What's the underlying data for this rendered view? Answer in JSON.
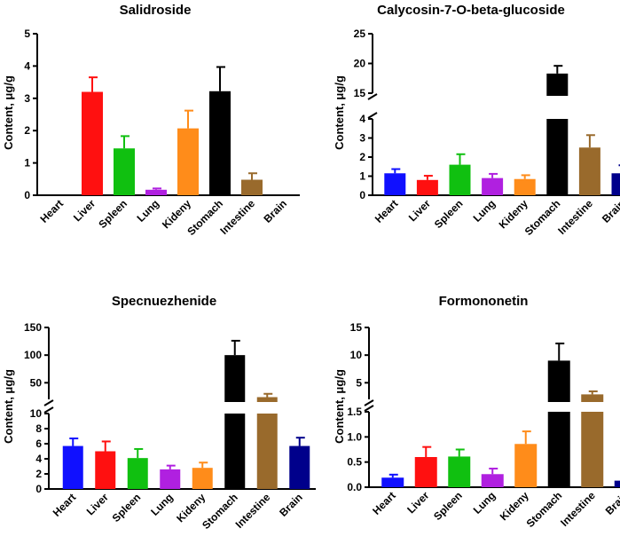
{
  "chart_data": [
    {
      "type": "bar",
      "title": "Salidroside",
      "ylabel": "Content, μg/g",
      "categories": [
        "Heart",
        "Liver",
        "Spleen",
        "Lung",
        "Kideny",
        "Stomach",
        "Intestine",
        "Brain"
      ],
      "values": [
        0,
        3.2,
        1.45,
        0.17,
        2.07,
        3.22,
        0.48,
        0
      ],
      "errors": [
        0,
        0.45,
        0.38,
        0.04,
        0.55,
        0.75,
        0.2,
        0
      ],
      "colors": [
        "#1010ff",
        "#ff1010",
        "#10c010",
        "#b020e0",
        "#ff8c1a",
        "#000000",
        "#996a2c",
        "#00008b"
      ],
      "ylim": [
        0,
        5
      ],
      "yticks": [
        "0",
        "1",
        "2",
        "3",
        "4",
        "5"
      ]
    },
    {
      "type": "bar",
      "title": "Calycosin-7-O-beta-glucoside",
      "ylabel": "Content, μg/g",
      "categories": [
        "Heart",
        "Liver",
        "Spleen",
        "Lung",
        "Kideny",
        "Stomach",
        "Intestine",
        "Brain"
      ],
      "values": [
        1.15,
        0.8,
        1.6,
        0.9,
        0.85,
        18.3,
        2.5,
        1.15
      ],
      "errors": [
        0.22,
        0.22,
        0.55,
        0.22,
        0.2,
        1.3,
        0.65,
        0.42
      ],
      "colors": [
        "#1010ff",
        "#ff1010",
        "#10c010",
        "#b020e0",
        "#ff8c1a",
        "#000000",
        "#996a2c",
        "#00008b"
      ],
      "ylim_lower": [
        0,
        4
      ],
      "ylim_upper": [
        15,
        25
      ],
      "yticks_lower": [
        "0",
        "1",
        "2",
        "3",
        "4"
      ],
      "yticks_upper": [
        "15",
        "20",
        "25"
      ]
    },
    {
      "type": "bar",
      "title": "Specnuezhenide",
      "ylabel": "Content, μg/g",
      "categories": [
        "Heart",
        "Liver",
        "Spleen",
        "Lung",
        "Kideny",
        "Stomach",
        "Intestine",
        "Brain"
      ],
      "values": [
        5.7,
        5.0,
        4.1,
        2.6,
        2.8,
        100,
        24,
        5.7
      ],
      "errors": [
        1.0,
        1.3,
        1.2,
        0.5,
        0.7,
        26,
        6,
        1.1
      ],
      "colors": [
        "#1010ff",
        "#ff1010",
        "#10c010",
        "#b020e0",
        "#ff8c1a",
        "#000000",
        "#996a2c",
        "#00008b"
      ],
      "ylim_lower": [
        0,
        10
      ],
      "ylim_upper": [
        20,
        150
      ],
      "yticks_lower": [
        "0",
        "2",
        "4",
        "6",
        "8",
        "10"
      ],
      "yticks_upper": [
        "50",
        "100",
        "150"
      ]
    },
    {
      "type": "bar",
      "title": "Formononetin",
      "ylabel": "Content, μg/g",
      "categories": [
        "Heart",
        "Liver",
        "Spleen",
        "Lung",
        "Kideny",
        "Stomach",
        "Intestine",
        "Brain"
      ],
      "values": [
        0.19,
        0.6,
        0.61,
        0.26,
        0.86,
        9.0,
        2.9,
        0.13
      ],
      "errors": [
        0.06,
        0.2,
        0.14,
        0.11,
        0.25,
        3.1,
        0.55,
        0.05
      ],
      "colors": [
        "#1010ff",
        "#ff1010",
        "#10c010",
        "#b020e0",
        "#ff8c1a",
        "#000000",
        "#996a2c",
        "#00008b"
      ],
      "ylim_lower": [
        0,
        1.5
      ],
      "ylim_upper": [
        2,
        15
      ],
      "yticks_lower": [
        "0.0",
        "0.5",
        "1.0",
        "1.5"
      ],
      "yticks_upper": [
        "5",
        "10",
        "15"
      ]
    }
  ]
}
